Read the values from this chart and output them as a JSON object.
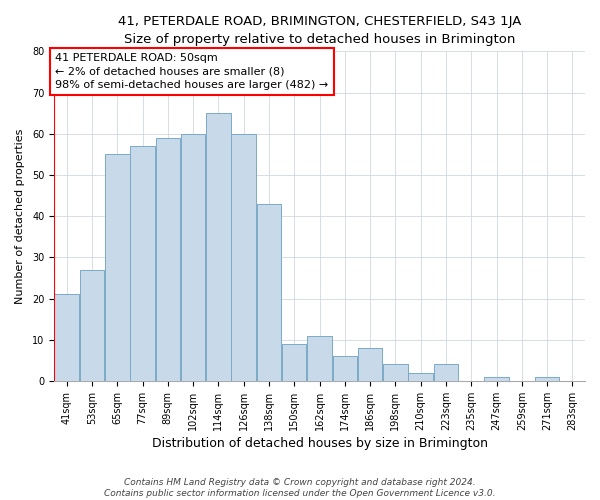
{
  "title": "41, PETERDALE ROAD, BRIMINGTON, CHESTERFIELD, S43 1JA",
  "subtitle": "Size of property relative to detached houses in Brimington",
  "xlabel": "Distribution of detached houses by size in Brimington",
  "ylabel": "Number of detached properties",
  "bar_color": "#c8daea",
  "bar_edge_color": "#7aaac8",
  "categories": [
    "41sqm",
    "53sqm",
    "65sqm",
    "77sqm",
    "89sqm",
    "102sqm",
    "114sqm",
    "126sqm",
    "138sqm",
    "150sqm",
    "162sqm",
    "174sqm",
    "186sqm",
    "198sqm",
    "210sqm",
    "223sqm",
    "235sqm",
    "247sqm",
    "259sqm",
    "271sqm",
    "283sqm"
  ],
  "values": [
    21,
    27,
    55,
    57,
    59,
    60,
    65,
    60,
    43,
    9,
    11,
    6,
    8,
    4,
    2,
    4,
    0,
    1,
    0,
    1,
    0
  ],
  "annotation_box_text": "41 PETERDALE ROAD: 50sqm\n← 2% of detached houses are smaller (8)\n98% of semi-detached houses are larger (482) →",
  "ylim": [
    0,
    80
  ],
  "yticks": [
    0,
    10,
    20,
    30,
    40,
    50,
    60,
    70,
    80
  ],
  "background_color": "#ffffff",
  "grid_color": "#d0d8e0",
  "footer_line1": "Contains HM Land Registry data © Crown copyright and database right 2024.",
  "footer_line2": "Contains public sector information licensed under the Open Government Licence v3.0.",
  "title_fontsize": 9.5,
  "subtitle_fontsize": 8.5,
  "xlabel_fontsize": 9,
  "ylabel_fontsize": 8,
  "tick_fontsize": 7,
  "annotation_fontsize": 8,
  "footer_fontsize": 6.5
}
